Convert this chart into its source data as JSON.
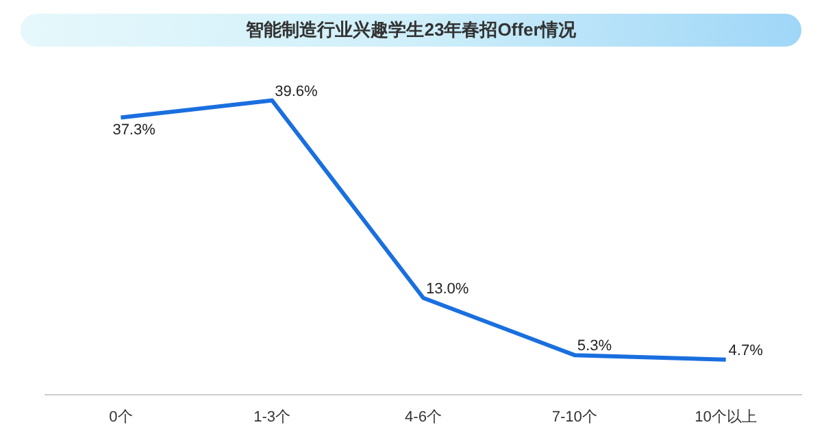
{
  "chart_data": {
    "type": "line",
    "title": "智能制造行业兴趣学生23年春招Offer情况",
    "categories": [
      "0个",
      "1-3个",
      "4-6个",
      "7-10个",
      "10个以上"
    ],
    "series": [
      {
        "color": "#1a6fdf",
        "values": [
          37.3,
          39.6,
          13.0,
          5.3,
          4.7
        ],
        "value_labels": [
          "37.3%",
          "39.6%",
          "13.0%",
          "5.3%",
          "4.7%"
        ]
      }
    ],
    "tick_labels": "x",
    "grid": false,
    "legend": false,
    "marker": "none",
    "line_style": "solid"
  }
}
